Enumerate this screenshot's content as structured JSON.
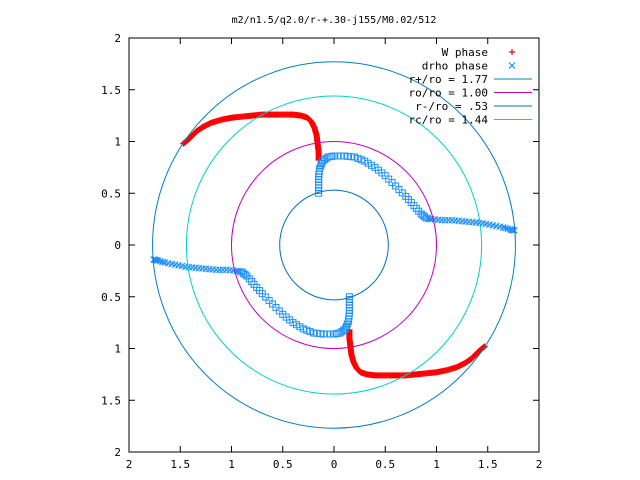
{
  "chart_data": {
    "type": "scatter",
    "title": "m2/n1.5/q2.0/r-+.30-j155/M0.02/512",
    "xlabel": "",
    "ylabel": "",
    "xlim": [
      -2,
      2
    ],
    "ylim": [
      -2,
      2
    ],
    "xtick_labels": [
      "2",
      "1.5",
      "1",
      "0.5",
      "0",
      "0.5",
      "1",
      "1.5",
      "2"
    ],
    "ytick_labels": [
      "2",
      "1.5",
      "1",
      "0.5",
      "0",
      "0.5",
      "1",
      "1.5",
      "2"
    ],
    "grid": false,
    "legend_position": "top-right",
    "colors": {
      "w_phase": "#ff0000",
      "drho_phase": "#1e90ff",
      "r_plus": "#0080c0",
      "r_o": "#c000c0",
      "r_minus": "#0070c0",
      "r_c": "#00d0d0"
    },
    "series": [
      {
        "name": "W phase",
        "kind": "points",
        "marker": "plus",
        "symmetry": "point-reflected",
        "points": [
          [
            -1.47,
            0.98
          ],
          [
            -1.42,
            1.02
          ],
          [
            -1.38,
            1.06
          ],
          [
            -1.34,
            1.1
          ],
          [
            -1.28,
            1.14
          ],
          [
            -1.2,
            1.18
          ],
          [
            -1.1,
            1.21
          ],
          [
            -1.0,
            1.23
          ],
          [
            -0.9,
            1.24
          ],
          [
            -0.8,
            1.25
          ],
          [
            -0.7,
            1.26
          ],
          [
            -0.6,
            1.26
          ],
          [
            -0.5,
            1.26
          ],
          [
            -0.4,
            1.26
          ],
          [
            -0.32,
            1.25
          ],
          [
            -0.26,
            1.23
          ],
          [
            -0.22,
            1.19
          ],
          [
            -0.19,
            1.13
          ],
          [
            -0.17,
            1.06
          ],
          [
            -0.16,
            0.98
          ],
          [
            -0.15,
            0.9
          ],
          [
            -0.15,
            0.82
          ]
        ]
      },
      {
        "name": "drho phase",
        "kind": "points",
        "marker": "square-cross",
        "symmetry": "point-reflected",
        "points": [
          [
            -0.15,
            0.5
          ],
          [
            -0.15,
            0.58
          ],
          [
            -0.15,
            0.66
          ],
          [
            -0.14,
            0.74
          ],
          [
            -0.11,
            0.81
          ],
          [
            -0.06,
            0.85
          ],
          [
            0.0,
            0.86
          ],
          [
            0.1,
            0.86
          ],
          [
            0.2,
            0.85
          ],
          [
            0.3,
            0.81
          ],
          [
            0.4,
            0.75
          ],
          [
            0.5,
            0.67
          ],
          [
            0.6,
            0.57
          ],
          [
            0.7,
            0.47
          ],
          [
            0.78,
            0.38
          ],
          [
            0.85,
            0.3
          ],
          [
            0.9,
            0.26
          ],
          [
            0.95,
            0.25
          ],
          [
            1.05,
            0.24
          ],
          [
            1.15,
            0.24
          ],
          [
            1.25,
            0.23
          ],
          [
            1.35,
            0.22
          ],
          [
            1.45,
            0.21
          ],
          [
            1.55,
            0.19
          ],
          [
            1.65,
            0.17
          ],
          [
            1.72,
            0.15
          ],
          [
            1.76,
            0.14
          ]
        ]
      },
      {
        "name": "r+/ro = 1.77",
        "kind": "circle",
        "radius": 1.77
      },
      {
        "name": "ro/ro = 1.00",
        "kind": "circle",
        "radius": 1.0
      },
      {
        "name": "r-/ro = .53",
        "kind": "circle",
        "radius": 0.53
      },
      {
        "name": "rc/ro = 1.44",
        "kind": "circle",
        "radius": 1.44
      }
    ]
  }
}
